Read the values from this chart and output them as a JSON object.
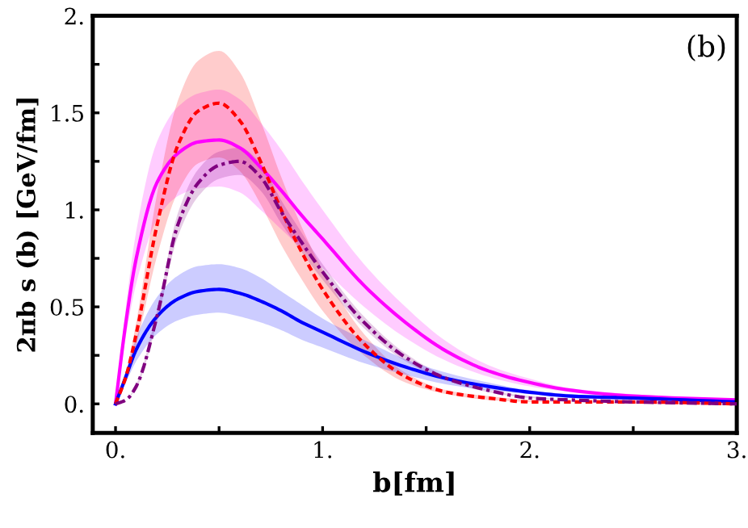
{
  "chart_data": {
    "type": "line",
    "xlabel": "b[fm]",
    "ylabel": "2πb s (b) [GeV/fm]",
    "annotations": [
      "(b)"
    ],
    "x": [
      0,
      0.05,
      0.1,
      0.2,
      0.3,
      0.4,
      0.5,
      0.6,
      0.7,
      0.8,
      0.9,
      1.0,
      1.2,
      1.4,
      1.6,
      1.8,
      2.0,
      2.2,
      2.5,
      3.0
    ],
    "series": [
      {
        "color": "#ff00ff",
        "line_style": "solid",
        "values": [
          0,
          0.42,
          0.75,
          1.14,
          1.29,
          1.35,
          1.36,
          1.32,
          1.22,
          1.1,
          0.97,
          0.85,
          0.61,
          0.42,
          0.27,
          0.17,
          0.11,
          0.07,
          0.04,
          0.02
        ],
        "lower": [
          0,
          0.35,
          0.62,
          0.95,
          1.07,
          1.11,
          1.12,
          1.09,
          1.0,
          0.9,
          0.8,
          0.7,
          0.5,
          0.34,
          0.22,
          0.14,
          0.09,
          0.06,
          0.03,
          0.01
        ],
        "upper": [
          0,
          0.5,
          0.89,
          1.35,
          1.53,
          1.6,
          1.62,
          1.57,
          1.45,
          1.31,
          1.15,
          1.0,
          0.72,
          0.5,
          0.32,
          0.2,
          0.13,
          0.08,
          0.05,
          0.02
        ]
      },
      {
        "color": "#ff0000",
        "line_style": "dashed",
        "values": [
          0,
          0.14,
          0.36,
          0.92,
          1.33,
          1.51,
          1.55,
          1.46,
          1.25,
          1.0,
          0.78,
          0.59,
          0.31,
          0.14,
          0.06,
          0.03,
          0.01,
          0.01,
          0.01,
          0
        ],
        "lower": [
          0,
          0.11,
          0.3,
          0.76,
          1.09,
          1.24,
          1.27,
          1.2,
          1.03,
          0.82,
          0.64,
          0.48,
          0.25,
          0.11,
          0.05,
          0.02,
          0.01,
          0.01,
          0,
          0
        ],
        "upper": [
          0,
          0.16,
          0.42,
          1.08,
          1.56,
          1.77,
          1.82,
          1.71,
          1.46,
          1.17,
          0.91,
          0.69,
          0.36,
          0.16,
          0.07,
          0.04,
          0.02,
          0.01,
          0.01,
          0
        ]
      },
      {
        "color": "#800080",
        "line_style": "dashdot",
        "values": [
          0,
          0.02,
          0.09,
          0.45,
          0.92,
          1.14,
          1.23,
          1.25,
          1.17,
          0.99,
          0.83,
          0.68,
          0.42,
          0.24,
          0.13,
          0.07,
          0.03,
          0.02,
          0.01,
          0
        ],
        "lower": [
          0,
          0.02,
          0.08,
          0.42,
          0.86,
          1.07,
          1.16,
          1.18,
          1.1,
          0.93,
          0.78,
          0.64,
          0.39,
          0.22,
          0.12,
          0.06,
          0.03,
          0.02,
          0.01,
          0
        ],
        "upper": [
          0,
          0.02,
          0.1,
          0.48,
          0.98,
          1.21,
          1.3,
          1.32,
          1.24,
          1.05,
          0.88,
          0.72,
          0.45,
          0.26,
          0.14,
          0.07,
          0.04,
          0.02,
          0.01,
          0
        ]
      },
      {
        "color": "#0000ff",
        "line_style": "solid",
        "values": [
          0,
          0.14,
          0.28,
          0.45,
          0.54,
          0.58,
          0.59,
          0.57,
          0.53,
          0.48,
          0.42,
          0.37,
          0.27,
          0.19,
          0.13,
          0.09,
          0.06,
          0.04,
          0.03,
          0.01
        ],
        "lower": [
          0,
          0.11,
          0.22,
          0.36,
          0.43,
          0.46,
          0.47,
          0.45,
          0.42,
          0.38,
          0.33,
          0.29,
          0.21,
          0.15,
          0.1,
          0.07,
          0.05,
          0.03,
          0.02,
          0.01
        ],
        "upper": [
          0,
          0.17,
          0.34,
          0.55,
          0.66,
          0.71,
          0.72,
          0.7,
          0.65,
          0.58,
          0.51,
          0.44,
          0.33,
          0.23,
          0.16,
          0.11,
          0.07,
          0.05,
          0.03,
          0.02
        ]
      }
    ],
    "xlim": [
      -0.11,
      3
    ],
    "ylim": [
      -0.15,
      2
    ],
    "xticks": [
      {
        "value": 0,
        "label": "0."
      },
      {
        "value": 0.5,
        "label": null
      },
      {
        "value": 1,
        "label": "1."
      },
      {
        "value": 1.5,
        "label": null
      },
      {
        "value": 2,
        "label": "2."
      },
      {
        "value": 2.5,
        "label": null
      },
      {
        "value": 3,
        "label": "3."
      }
    ],
    "yticks": [
      {
        "value": 0,
        "label": "0."
      },
      {
        "value": 0.25,
        "label": null
      },
      {
        "value": 0.5,
        "label": "0.5"
      },
      {
        "value": 0.75,
        "label": null
      },
      {
        "value": 1,
        "label": "1."
      },
      {
        "value": 1.25,
        "label": null
      },
      {
        "value": 1.5,
        "label": "1.5"
      },
      {
        "value": 1.75,
        "label": null
      },
      {
        "value": 2,
        "label": "2."
      }
    ],
    "grid": false,
    "legend": false
  }
}
